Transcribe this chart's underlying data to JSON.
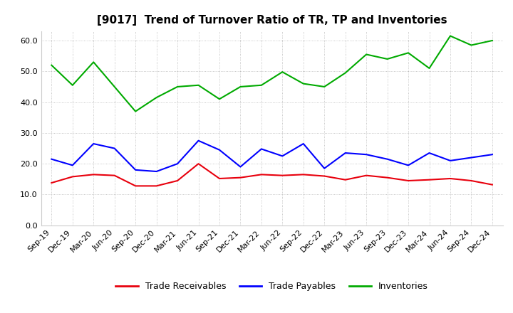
{
  "title": "[9017]  Trend of Turnover Ratio of TR, TP and Inventories",
  "x_labels": [
    "Sep-19",
    "Dec-19",
    "Mar-20",
    "Jun-20",
    "Sep-20",
    "Dec-20",
    "Mar-21",
    "Jun-21",
    "Sep-21",
    "Dec-21",
    "Mar-22",
    "Jun-22",
    "Sep-22",
    "Dec-22",
    "Mar-23",
    "Jun-23",
    "Sep-23",
    "Dec-23",
    "Mar-24",
    "Jun-24",
    "Sep-24",
    "Dec-24"
  ],
  "trade_receivables": [
    13.8,
    15.8,
    16.5,
    16.2,
    12.8,
    12.8,
    14.5,
    20.0,
    15.2,
    15.5,
    16.5,
    16.2,
    16.5,
    16.0,
    14.8,
    16.2,
    15.5,
    14.5,
    14.8,
    15.2,
    14.5,
    13.2
  ],
  "trade_payables": [
    21.5,
    19.5,
    26.5,
    25.0,
    18.0,
    17.5,
    20.0,
    27.5,
    24.5,
    19.0,
    24.8,
    22.5,
    26.5,
    18.5,
    23.5,
    23.0,
    21.5,
    19.5,
    23.5,
    21.0,
    22.0,
    23.0
  ],
  "inventories": [
    52.0,
    45.5,
    53.0,
    45.0,
    37.0,
    41.5,
    45.0,
    45.5,
    41.0,
    45.0,
    45.5,
    49.8,
    46.0,
    45.0,
    49.5,
    55.5,
    54.0,
    56.0,
    51.0,
    61.5,
    58.5,
    60.0
  ],
  "tr_color": "#e8000d",
  "tp_color": "#0000ff",
  "inv_color": "#00aa00",
  "ylim": [
    0,
    63
  ],
  "yticks": [
    0.0,
    10.0,
    20.0,
    30.0,
    40.0,
    50.0,
    60.0
  ],
  "legend_labels": [
    "Trade Receivables",
    "Trade Payables",
    "Inventories"
  ],
  "background_color": "#ffffff",
  "plot_bg_color": "#ffffff",
  "grid_color": "#999999",
  "title_fontsize": 11,
  "tick_fontsize": 8,
  "legend_fontsize": 9
}
